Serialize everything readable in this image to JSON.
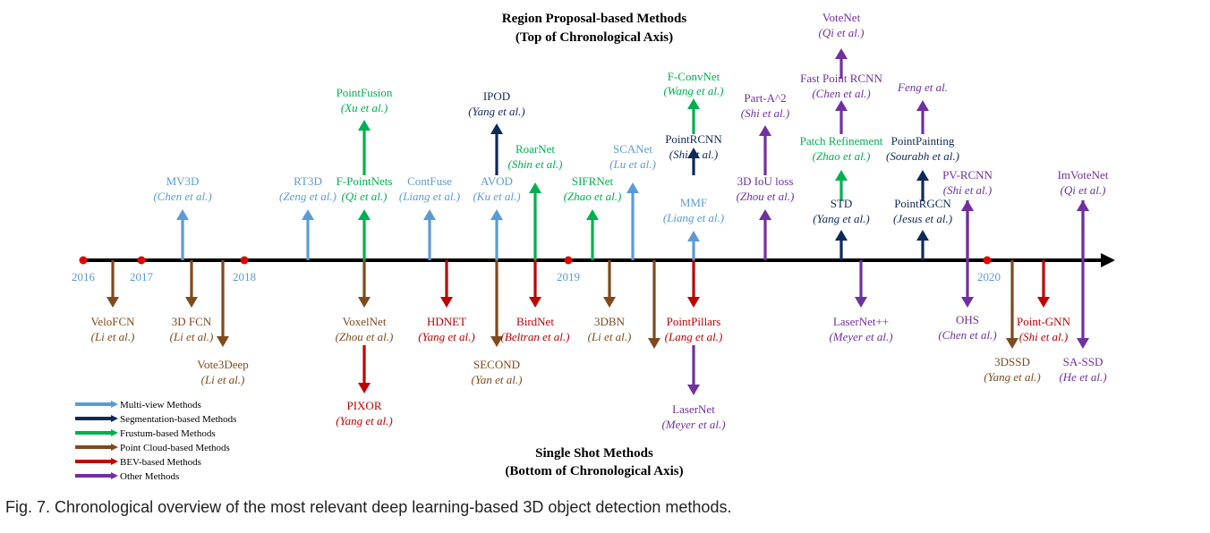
{
  "headings": {
    "top": [
      "Region Proposal-based Methods",
      "(Top of Chronological Axis)"
    ],
    "bottom": [
      "Single Shot Methods",
      "(Bottom of Chronological Axis)"
    ]
  },
  "caption": "Fig. 7. Chronological overview of the most relevant deep learning-based 3D object detection methods.",
  "colors": {
    "multi_view": "#5b9bd5",
    "segmentation": "#0f2a5a",
    "frustum": "#00b050",
    "point_cloud": "#7f4a1d",
    "bev": "#c00000",
    "other": "#7030a0",
    "axis": "#000000",
    "year_dot": "#e00000",
    "year_label": "#5b9bd5"
  },
  "years": [
    {
      "label": "2016"
    },
    {
      "label": "2017"
    },
    {
      "label": "2018"
    },
    {
      "label": "2019"
    },
    {
      "label": "2020"
    }
  ],
  "legend": [
    {
      "label": "Multi-view Methods",
      "category": "multi_view"
    },
    {
      "label": "Segmentation-based Methods",
      "category": "segmentation"
    },
    {
      "label": "Frustum-based Methods",
      "category": "frustum"
    },
    {
      "label": "Point Cloud-based Methods",
      "category": "point_cloud"
    },
    {
      "label": "BEV-based Methods",
      "category": "bev"
    },
    {
      "label": "Other Methods",
      "category": "other"
    }
  ],
  "methods": [
    {
      "name": "MV3D",
      "authors": "Chen et al.",
      "category": "multi_view"
    },
    {
      "name": "RT3D",
      "authors": "Zeng et al.",
      "category": "multi_view"
    },
    {
      "name": "F-PointNets",
      "authors": "Qi et al.",
      "category": "frustum"
    },
    {
      "name": "PointFusion",
      "authors": "Xu et al.",
      "category": "frustum"
    },
    {
      "name": "ContFuse",
      "authors": "Liang et al.",
      "category": "multi_view"
    },
    {
      "name": "AVOD",
      "authors": "Ku et al.",
      "category": "multi_view"
    },
    {
      "name": "IPOD",
      "authors": "Yang et al.",
      "category": "segmentation"
    },
    {
      "name": "RoarNet",
      "authors": "Shin et al.",
      "category": "frustum"
    },
    {
      "name": "SIFRNet",
      "authors": "Zhao et al.",
      "category": "frustum"
    },
    {
      "name": "SCANet",
      "authors": "Lu et al.",
      "category": "multi_view"
    },
    {
      "name": "MMF",
      "authors": "Liang et al.",
      "category": "multi_view"
    },
    {
      "name": "PointRCNN",
      "authors": "Shi et al.",
      "category": "segmentation"
    },
    {
      "name": "F-ConvNet",
      "authors": "Wang et al.",
      "category": "frustum"
    },
    {
      "name": "3D IoU loss",
      "authors": "Zhou et al.",
      "category": "other"
    },
    {
      "name": "Part-A^2",
      "authors": "Shi et al.",
      "category": "other"
    },
    {
      "name": "STD",
      "authors": "Yang et al.",
      "category": "segmentation"
    },
    {
      "name": "Patch Refinement",
      "authors": "Zhao et al.",
      "category": "frustum"
    },
    {
      "name": "Fast Point RCNN",
      "authors": "Chen et al.",
      "category": "other"
    },
    {
      "name": "VoteNet",
      "authors": "Qi et al.",
      "category": "other"
    },
    {
      "name": "PointRGCN",
      "authors": "Jesus et al.",
      "category": "segmentation"
    },
    {
      "name": "PointPainting",
      "authors": "Sourabh et al.",
      "category": "segmentation"
    },
    {
      "name": "",
      "authors": "Feng et al.",
      "category": "other"
    },
    {
      "name": "PV-RCNN",
      "authors": "Shi et al.",
      "category": "other"
    },
    {
      "name": "ImVoteNet",
      "authors": "Qi et al.",
      "category": "other"
    },
    {
      "name": "VeloFCN",
      "authors": "Li et al.",
      "category": "point_cloud"
    },
    {
      "name": "3D FCN",
      "authors": "Li et al.",
      "category": "point_cloud"
    },
    {
      "name": "Vote3Deep",
      "authors": "Li et al.",
      "category": "point_cloud"
    },
    {
      "name": "VoxelNet",
      "authors": "Zhou et al.",
      "category": "point_cloud"
    },
    {
      "name": "PIXOR",
      "authors": "Yang et al.",
      "category": "bev"
    },
    {
      "name": "HDNET",
      "authors": "Yang et al.",
      "category": "bev"
    },
    {
      "name": "SECOND",
      "authors": "Yan et al.",
      "category": "point_cloud"
    },
    {
      "name": "BirdNet",
      "authors": "Beltran et al.",
      "category": "bev"
    },
    {
      "name": "3DBN",
      "authors": "Li et al.",
      "category": "point_cloud"
    },
    {
      "name": "PointPillars",
      "authors": "Lang et al.",
      "category": "bev"
    },
    {
      "name": "LaserNet",
      "authors": "Meyer et al.",
      "category": "other"
    },
    {
      "name": "LaserNet++",
      "authors": "Meyer et al.",
      "category": "other"
    },
    {
      "name": "OHS",
      "authors": "Chen et al.",
      "category": "other"
    },
    {
      "name": "3DSSD",
      "authors": "Yang et al.",
      "category": "point_cloud"
    },
    {
      "name": "Point-GNN",
      "authors": "Shi et al.",
      "category": "bev"
    },
    {
      "name": "SA-SSD",
      "authors": "He et al.",
      "category": "other"
    }
  ]
}
